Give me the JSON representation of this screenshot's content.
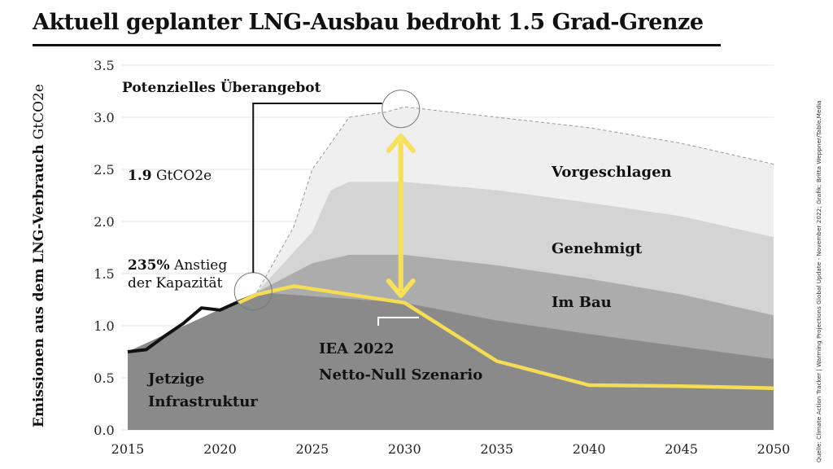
{
  "title": "Aktuell geplanter LNG-Ausbau bedroht 1.5 Grad-Grenze",
  "source": "Quelle: Climate Action Tracker | Warming Projections Global Update - November 2022; Grafik: Britta Weppner/Table.Media",
  "chart_data": {
    "type": "area",
    "ylabel": "Emissionen aus dem LNG-Verbrauch",
    "ylabel_unit": "GtCO2e",
    "ylim": [
      0,
      3.5
    ],
    "xlim": [
      2015,
      2050
    ],
    "x_ticks": [
      "2015",
      "2020",
      "2025",
      "2030",
      "2035",
      "2040",
      "2045",
      "2050"
    ],
    "y_ticks": [
      "0.0",
      "0.5",
      "1.0",
      "1.5",
      "2.0",
      "2.5",
      "3.0",
      "3.5"
    ],
    "grid": "horizontal",
    "colors": {
      "jetzige": "#8a8a8a",
      "im_bau": "#acacac",
      "genehmigt": "#d4d4d4",
      "vorgeschlagen": "#efefef",
      "historic_line": "#111111",
      "iea": "#f5dc55",
      "arrow": "#f7e05a"
    },
    "series": [
      {
        "name": "Jetzige Infrastruktur",
        "x": [
          2015,
          2022,
          2030,
          2035,
          2040,
          2045,
          2050
        ],
        "values": [
          0.75,
          1.32,
          1.22,
          1.05,
          0.92,
          0.8,
          0.68
        ]
      },
      {
        "name": "Im Bau",
        "x": [
          2015,
          2022,
          2025,
          2027,
          2030,
          2035,
          2040,
          2045,
          2050
        ],
        "values": [
          0.75,
          1.32,
          1.6,
          1.68,
          1.68,
          1.58,
          1.45,
          1.3,
          1.1
        ]
      },
      {
        "name": "Genehmigt",
        "x": [
          2015,
          2022,
          2025,
          2026,
          2027,
          2030,
          2035,
          2040,
          2045,
          2050
        ],
        "values": [
          0.75,
          1.32,
          1.9,
          2.3,
          2.38,
          2.38,
          2.3,
          2.18,
          2.05,
          1.85
        ]
      },
      {
        "name": "Vorgeschlagen",
        "x": [
          2015,
          2022,
          2024,
          2025,
          2027,
          2029,
          2030,
          2035,
          2040,
          2045,
          2050
        ],
        "values": [
          0.75,
          1.32,
          1.95,
          2.5,
          3.0,
          3.05,
          3.1,
          3.0,
          2.9,
          2.75,
          2.55
        ]
      }
    ],
    "historic": {
      "x": [
        2015,
        2016,
        2017,
        2018,
        2019,
        2020,
        2021,
        2022
      ],
      "values": [
        0.75,
        0.77,
        0.9,
        1.02,
        1.17,
        1.15,
        1.23,
        1.3
      ]
    },
    "iea_scenario": {
      "x": [
        2021,
        2022,
        2024,
        2030,
        2035,
        2040,
        2045,
        2050
      ],
      "values": [
        1.22,
        1.3,
        1.38,
        1.22,
        0.66,
        0.43,
        0.42,
        0.4
      ]
    },
    "labels": {
      "vorgeschlagen": "Vorgeschlagen",
      "genehmigt": "Genehmigt",
      "im_bau": "Im Bau",
      "jetzige_1": "Jetzige",
      "jetzige_2": "Infrastruktur",
      "iea_1": "IEA 2022",
      "iea_2": "Netto-Null Szenario"
    },
    "annotations": {
      "oversupply": "Potenzielles Überangebot",
      "value_bold": "1.9",
      "value_unit": " GtCO2e",
      "increase_bold": "235%",
      "increase_rest": " Anstieg",
      "increase_line2": "der Kapazität"
    }
  }
}
